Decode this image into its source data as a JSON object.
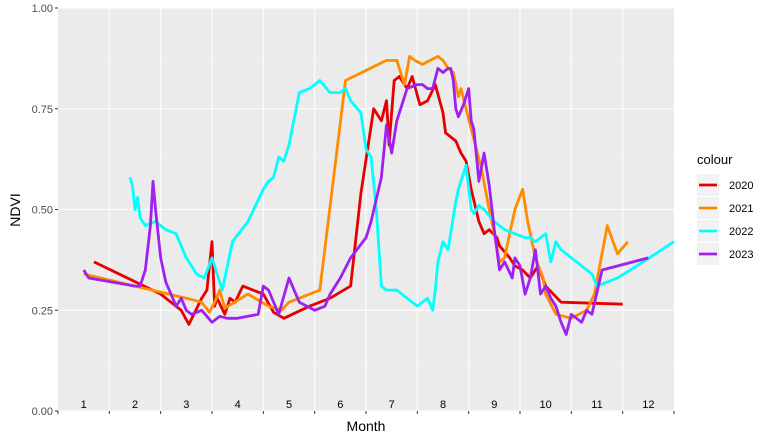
{
  "chart_data": {
    "type": "line",
    "xlabel": "Month",
    "ylabel": "NDVI",
    "ylim": [
      0,
      1
    ],
    "y_ticks": [
      "0.00",
      "0.25",
      "0.50",
      "0.75",
      "1.00"
    ],
    "month_labels": [
      "1",
      "2",
      "3",
      "4",
      "5",
      "6",
      "7",
      "8",
      "9",
      "10",
      "11",
      "12"
    ],
    "grid": true,
    "legend_title": "colour",
    "legend_position": "right",
    "series": [
      {
        "name": "2020",
        "color": "#e60000",
        "x": [
          1.2,
          2.5,
          2.9,
          3.05,
          3.3,
          3.4,
          3.5,
          3.55,
          3.6,
          3.75,
          3.85,
          3.95,
          4.1,
          4.5,
          4.7,
          4.9,
          5.4,
          5.8,
          6.2,
          6.4,
          6.65,
          6.8,
          6.9,
          6.95,
          7.05,
          7.15,
          7.3,
          7.4,
          7.55,
          7.7,
          7.85,
          8.0,
          8.05,
          8.25,
          8.35,
          8.45,
          8.55,
          8.7,
          8.8,
          8.9,
          9.05,
          9.1,
          9.3,
          9.4,
          9.55,
          9.7,
          9.85,
          10.0,
          10.3,
          11.5
        ],
        "y": [
          0.37,
          0.29,
          0.25,
          0.215,
          0.28,
          0.3,
          0.42,
          0.26,
          0.28,
          0.24,
          0.28,
          0.27,
          0.31,
          0.29,
          0.245,
          0.23,
          0.26,
          0.28,
          0.31,
          0.54,
          0.75,
          0.72,
          0.77,
          0.66,
          0.82,
          0.83,
          0.8,
          0.83,
          0.76,
          0.77,
          0.81,
          0.74,
          0.69,
          0.67,
          0.64,
          0.62,
          0.55,
          0.47,
          0.44,
          0.45,
          0.43,
          0.41,
          0.38,
          0.36,
          0.35,
          0.33,
          0.36,
          0.31,
          0.27,
          0.265
        ]
      },
      {
        "name": "2021",
        "color": "#ff8c00",
        "x": [
          1.0,
          2.0,
          3.0,
          3.3,
          3.45,
          3.55,
          3.65,
          3.75,
          4.2,
          4.6,
          4.85,
          5.0,
          5.2,
          5.6,
          6.1,
          6.9,
          7.1,
          7.25,
          7.35,
          7.45,
          7.6,
          7.75,
          7.9,
          8.0,
          8.1,
          8.2,
          8.3,
          8.35,
          8.45,
          8.55,
          8.65,
          8.75,
          8.9,
          9.0,
          9.1,
          9.2,
          9.3,
          9.4,
          9.55,
          9.65,
          9.8,
          9.95,
          10.0,
          10.2,
          10.5,
          10.8,
          10.95,
          11.2,
          11.4,
          11.6
        ],
        "y": [
          0.34,
          0.31,
          0.28,
          0.27,
          0.245,
          0.27,
          0.3,
          0.255,
          0.29,
          0.26,
          0.25,
          0.27,
          0.28,
          0.3,
          0.82,
          0.87,
          0.87,
          0.81,
          0.88,
          0.87,
          0.86,
          0.87,
          0.88,
          0.87,
          0.85,
          0.84,
          0.78,
          0.8,
          0.75,
          0.7,
          0.65,
          0.6,
          0.5,
          0.44,
          0.37,
          0.38,
          0.44,
          0.5,
          0.55,
          0.47,
          0.38,
          0.33,
          0.29,
          0.24,
          0.23,
          0.25,
          0.29,
          0.46,
          0.39,
          0.42
        ]
      },
      {
        "name": "2022",
        "color": "#00ffff",
        "x": [
          1.9,
          1.95,
          2.0,
          2.05,
          2.1,
          2.2,
          2.4,
          2.5,
          2.6,
          2.8,
          3.0,
          3.1,
          3.2,
          3.35,
          3.5,
          3.7,
          3.9,
          4.2,
          4.5,
          4.6,
          4.7,
          4.8,
          4.9,
          5.0,
          5.2,
          5.4,
          5.5,
          5.6,
          5.8,
          6.0,
          6.1,
          6.2,
          6.4,
          6.5,
          6.6,
          6.7,
          6.8,
          6.9,
          7.1,
          7.3,
          7.5,
          7.6,
          7.7,
          7.8,
          7.85,
          7.9,
          8.0,
          8.1,
          8.25,
          8.3,
          8.45,
          8.55,
          8.6,
          8.7,
          8.8,
          9.0,
          9.2,
          9.4,
          9.6,
          9.7,
          9.8,
          10.0,
          10.1,
          10.2,
          10.3,
          10.6,
          10.9,
          11.0,
          11.4,
          11.9,
          12.5
        ],
        "y": [
          0.58,
          0.56,
          0.5,
          0.53,
          0.48,
          0.46,
          0.47,
          0.46,
          0.45,
          0.44,
          0.38,
          0.36,
          0.34,
          0.33,
          0.38,
          0.3,
          0.42,
          0.47,
          0.55,
          0.57,
          0.58,
          0.63,
          0.62,
          0.66,
          0.79,
          0.8,
          0.81,
          0.82,
          0.79,
          0.79,
          0.8,
          0.77,
          0.74,
          0.65,
          0.63,
          0.5,
          0.31,
          0.3,
          0.3,
          0.28,
          0.26,
          0.27,
          0.28,
          0.25,
          0.3,
          0.37,
          0.42,
          0.4,
          0.52,
          0.55,
          0.61,
          0.5,
          0.49,
          0.51,
          0.5,
          0.47,
          0.45,
          0.44,
          0.43,
          0.43,
          0.42,
          0.44,
          0.37,
          0.42,
          0.4,
          0.37,
          0.34,
          0.31,
          0.33,
          0.37,
          0.42
        ]
      },
      {
        "name": "2023",
        "color": "#a020f0",
        "x": [
          1.0,
          1.05,
          1.1,
          2.0,
          2.1,
          2.2,
          2.3,
          2.35,
          2.4,
          2.5,
          2.6,
          2.8,
          2.9,
          3.0,
          3.1,
          3.3,
          3.5,
          3.65,
          3.8,
          4.0,
          4.2,
          4.4,
          4.5,
          4.6,
          4.8,
          5.0,
          5.1,
          5.2,
          5.5,
          5.7,
          5.8,
          6.0,
          6.2,
          6.5,
          6.6,
          6.8,
          6.9,
          7.0,
          7.1,
          7.3,
          7.5,
          7.6,
          7.7,
          7.8,
          7.9,
          8.0,
          8.1,
          8.15,
          8.2,
          8.25,
          8.3,
          8.4,
          8.5,
          8.55,
          8.6,
          8.7,
          8.8,
          8.9,
          9.0,
          9.1,
          9.2,
          9.35,
          9.4,
          9.5,
          9.6,
          9.7,
          9.8,
          9.9,
          10.0,
          10.1,
          10.2,
          10.3,
          10.4,
          10.5,
          10.6,
          10.7,
          10.8,
          10.9,
          11.1,
          12.0
        ],
        "y": [
          0.35,
          0.34,
          0.33,
          0.31,
          0.31,
          0.35,
          0.46,
          0.57,
          0.5,
          0.38,
          0.32,
          0.26,
          0.28,
          0.25,
          0.24,
          0.25,
          0.22,
          0.235,
          0.23,
          0.23,
          0.235,
          0.24,
          0.31,
          0.3,
          0.24,
          0.33,
          0.3,
          0.27,
          0.25,
          0.26,
          0.29,
          0.33,
          0.38,
          0.43,
          0.47,
          0.58,
          0.71,
          0.64,
          0.72,
          0.8,
          0.81,
          0.81,
          0.8,
          0.8,
          0.85,
          0.84,
          0.85,
          0.85,
          0.82,
          0.75,
          0.73,
          0.76,
          0.8,
          0.72,
          0.7,
          0.57,
          0.64,
          0.56,
          0.45,
          0.35,
          0.37,
          0.33,
          0.38,
          0.36,
          0.29,
          0.33,
          0.4,
          0.29,
          0.31,
          0.28,
          0.26,
          0.22,
          0.19,
          0.24,
          0.23,
          0.22,
          0.25,
          0.24,
          0.35,
          0.38
        ]
      }
    ]
  }
}
